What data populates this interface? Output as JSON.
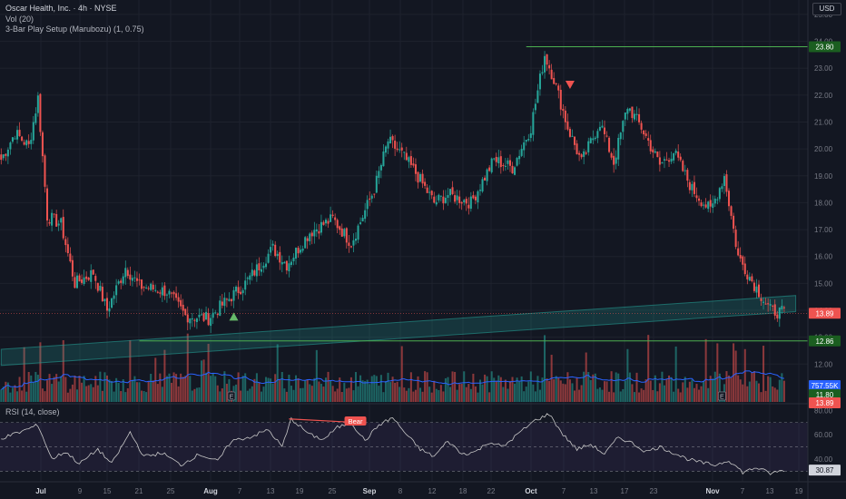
{
  "header": {
    "title": "Oscar Health, Inc. · 4h · NYSE",
    "vol_label": "Vol (20)",
    "indicator_label": "3-Bar Play Setup (Marubozu) (1, 0.75)",
    "rsi_label": "RSI (14, close)",
    "currency_button": "USD"
  },
  "colors": {
    "background": "#131722",
    "up": "#26a69a",
    "down": "#ef5350",
    "level_line": "#4caf50",
    "channel": "#26a69a",
    "volume_ma": "#2962ff",
    "rsi_line": "#c8c8c8"
  },
  "chart_data": {
    "type": "candlestick",
    "price_axis": {
      "ylim": [
        11.2,
        25.2
      ],
      "ticks": [
        12,
        13,
        14,
        15,
        16,
        17,
        18,
        19,
        20,
        21,
        22,
        23,
        24,
        25
      ],
      "tick_labels": [
        "12.00",
        "13.00",
        "14.00",
        "15.00",
        "16.00",
        "17.00",
        "18.00",
        "19.00",
        "20.00",
        "21.00",
        "22.00",
        "23.00",
        "24.00",
        "25.00"
      ]
    },
    "x_axis": {
      "labels": [
        "Jul",
        "9",
        "15",
        "21",
        "25",
        "Aug",
        "7",
        "13",
        "19",
        "25",
        "Sep",
        "8",
        "12",
        "18",
        "22",
        "Oct",
        "7",
        "13",
        "17",
        "23",
        "Nov",
        "7",
        "13",
        "19"
      ],
      "bold": [
        "Jul",
        "Aug",
        "Sep",
        "Oct",
        "Nov"
      ]
    },
    "price_path": [
      {
        "bar": 0,
        "price": 19.6
      },
      {
        "bar": 6,
        "price": 20.6
      },
      {
        "bar": 12,
        "price": 20.1
      },
      {
        "bar": 16,
        "price": 21.9
      },
      {
        "bar": 20,
        "price": 17.5
      },
      {
        "bar": 26,
        "price": 17.2
      },
      {
        "bar": 32,
        "price": 15.0
      },
      {
        "bar": 40,
        "price": 15.4
      },
      {
        "bar": 46,
        "price": 14.0
      },
      {
        "bar": 54,
        "price": 15.6
      },
      {
        "bar": 60,
        "price": 14.9
      },
      {
        "bar": 72,
        "price": 14.7
      },
      {
        "bar": 80,
        "price": 13.8
      },
      {
        "bar": 90,
        "price": 13.7
      },
      {
        "bar": 96,
        "price": 14.2
      },
      {
        "bar": 106,
        "price": 15.0
      },
      {
        "bar": 118,
        "price": 16.3
      },
      {
        "bar": 124,
        "price": 15.7
      },
      {
        "bar": 134,
        "price": 16.9
      },
      {
        "bar": 144,
        "price": 17.4
      },
      {
        "bar": 152,
        "price": 16.5
      },
      {
        "bar": 162,
        "price": 18.5
      },
      {
        "bar": 168,
        "price": 20.3
      },
      {
        "bar": 174,
        "price": 19.8
      },
      {
        "bar": 180,
        "price": 19.1
      },
      {
        "bar": 188,
        "price": 18.0
      },
      {
        "bar": 194,
        "price": 18.3
      },
      {
        "bar": 204,
        "price": 18.0
      },
      {
        "bar": 214,
        "price": 19.6
      },
      {
        "bar": 222,
        "price": 19.3
      },
      {
        "bar": 230,
        "price": 20.8
      },
      {
        "bar": 236,
        "price": 23.5
      },
      {
        "bar": 240,
        "price": 22.6
      },
      {
        "bar": 246,
        "price": 20.8
      },
      {
        "bar": 252,
        "price": 19.5
      },
      {
        "bar": 260,
        "price": 21.0
      },
      {
        "bar": 266,
        "price": 19.5
      },
      {
        "bar": 272,
        "price": 21.6
      },
      {
        "bar": 278,
        "price": 20.8
      },
      {
        "bar": 286,
        "price": 19.4
      },
      {
        "bar": 292,
        "price": 19.9
      },
      {
        "bar": 300,
        "price": 18.5
      },
      {
        "bar": 308,
        "price": 17.7
      },
      {
        "bar": 314,
        "price": 19.0
      },
      {
        "bar": 320,
        "price": 16.0
      },
      {
        "bar": 326,
        "price": 15.1
      },
      {
        "bar": 334,
        "price": 14.0
      },
      {
        "bar": 340,
        "price": 13.9
      }
    ],
    "levels": [
      {
        "label": "23.80",
        "value": 23.8,
        "from_bar": 228
      },
      {
        "label": "12.86",
        "value": 12.86,
        "from_bar": 60
      }
    ],
    "last_price": {
      "label": "13.89",
      "value": 13.89
    },
    "channel": {
      "from_bar": 0,
      "to_bar": 345,
      "lower_start": 11.95,
      "lower_end": 13.95,
      "width": 0.6
    },
    "signals": [
      {
        "type": "bull-triangle",
        "bar": 101,
        "price": 13.75
      },
      {
        "type": "bear-triangle",
        "bar": 247,
        "price": 22.4
      }
    ],
    "volume": {
      "last_label": "757.55K",
      "marker_labels": [
        "11.80",
        "13.89"
      ],
      "earnings_markers": [
        {
          "bar": 100,
          "label": "E"
        },
        {
          "bar": 313,
          "label": "E"
        }
      ]
    },
    "rsi": {
      "ylim": [
        22,
        84
      ],
      "ticks": [
        40,
        60,
        80
      ],
      "tick_labels": [
        "40.00",
        "60.00",
        "80.00"
      ],
      "band": [
        30,
        70
      ],
      "current_label": "30.87",
      "divergence": {
        "label": "Bear",
        "from_bar": 125,
        "to_bar": 155
      },
      "path": [
        {
          "bar": 0,
          "value": 57
        },
        {
          "bar": 8,
          "value": 62
        },
        {
          "bar": 16,
          "value": 68
        },
        {
          "bar": 22,
          "value": 40
        },
        {
          "bar": 28,
          "value": 46
        },
        {
          "bar": 34,
          "value": 36
        },
        {
          "bar": 42,
          "value": 48
        },
        {
          "bar": 48,
          "value": 36
        },
        {
          "bar": 56,
          "value": 62
        },
        {
          "bar": 62,
          "value": 42
        },
        {
          "bar": 70,
          "value": 45
        },
        {
          "bar": 78,
          "value": 35
        },
        {
          "bar": 86,
          "value": 44
        },
        {
          "bar": 94,
          "value": 38
        },
        {
          "bar": 100,
          "value": 55
        },
        {
          "bar": 108,
          "value": 58
        },
        {
          "bar": 116,
          "value": 64
        },
        {
          "bar": 122,
          "value": 50
        },
        {
          "bar": 126,
          "value": 73
        },
        {
          "bar": 134,
          "value": 60
        },
        {
          "bar": 140,
          "value": 56
        },
        {
          "bar": 146,
          "value": 66
        },
        {
          "bar": 152,
          "value": 70
        },
        {
          "bar": 158,
          "value": 55
        },
        {
          "bar": 164,
          "value": 68
        },
        {
          "bar": 170,
          "value": 74
        },
        {
          "bar": 176,
          "value": 60
        },
        {
          "bar": 182,
          "value": 48
        },
        {
          "bar": 188,
          "value": 42
        },
        {
          "bar": 194,
          "value": 55
        },
        {
          "bar": 200,
          "value": 44
        },
        {
          "bar": 206,
          "value": 46
        },
        {
          "bar": 212,
          "value": 54
        },
        {
          "bar": 218,
          "value": 50
        },
        {
          "bar": 224,
          "value": 60
        },
        {
          "bar": 232,
          "value": 72
        },
        {
          "bar": 238,
          "value": 77
        },
        {
          "bar": 244,
          "value": 60
        },
        {
          "bar": 250,
          "value": 48
        },
        {
          "bar": 256,
          "value": 52
        },
        {
          "bar": 262,
          "value": 44
        },
        {
          "bar": 268,
          "value": 58
        },
        {
          "bar": 274,
          "value": 53
        },
        {
          "bar": 280,
          "value": 46
        },
        {
          "bar": 286,
          "value": 50
        },
        {
          "bar": 292,
          "value": 45
        },
        {
          "bar": 298,
          "value": 40
        },
        {
          "bar": 304,
          "value": 37
        },
        {
          "bar": 310,
          "value": 35
        },
        {
          "bar": 316,
          "value": 39
        },
        {
          "bar": 322,
          "value": 29
        },
        {
          "bar": 328,
          "value": 33
        },
        {
          "bar": 334,
          "value": 28
        },
        {
          "bar": 340,
          "value": 30.87
        }
      ]
    }
  }
}
